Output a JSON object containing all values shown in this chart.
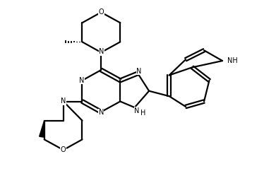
{
  "bg_color": "#ffffff",
  "line_color": "#000000",
  "line_width": 1.6,
  "figsize": [
    3.74,
    2.76
  ],
  "dpi": 100,
  "xlim": [
    0,
    10
  ],
  "ylim": [
    0,
    7.4
  ]
}
